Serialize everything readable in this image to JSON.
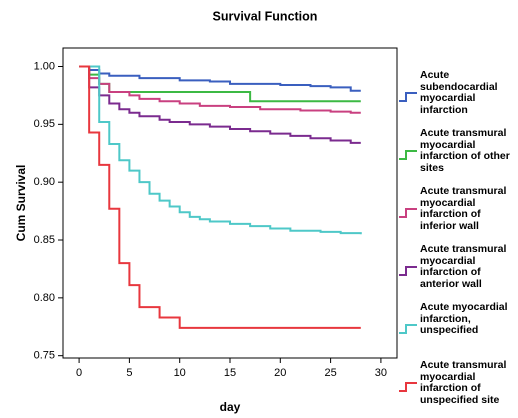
{
  "chart_data": {
    "type": "line",
    "step": true,
    "title": "Survival Function",
    "xlabel": "day",
    "ylabel": "Cum Survival",
    "x": [
      0,
      1,
      2,
      3,
      4,
      5,
      6,
      7,
      8,
      9,
      10,
      11,
      12,
      13,
      14,
      15,
      16,
      17,
      18,
      19,
      20,
      21,
      22,
      23,
      24,
      25,
      26,
      27,
      28
    ],
    "xlim": [
      -1.6,
      31.6
    ],
    "xticks": [
      0,
      5,
      10,
      15,
      20,
      25,
      30
    ],
    "ylim": [
      0.748,
      1.016
    ],
    "yticks": [
      {
        "value": 0.75,
        "label": "0.75"
      },
      {
        "value": 0.8,
        "label": "0.80"
      },
      0.85,
      {
        "value": 0.9,
        "label": "0.90"
      },
      0.95,
      {
        "value": 1,
        "label": "1.00"
      }
    ],
    "series": [
      {
        "name": "Acute subendocardial myocardial infarction",
        "color": "#3a5fbf",
        "values": [
          1,
          0.997,
          0.994,
          0.992,
          0.992,
          0.992,
          0.99,
          0.99,
          0.99,
          0.99,
          0.988,
          0.988,
          0.988,
          0.987,
          0.987,
          0.985,
          0.985,
          0.985,
          0.985,
          0.985,
          0.984,
          0.984,
          0.984,
          0.983,
          0.983,
          0.982,
          0.982,
          0.979,
          0.979
        ]
      },
      {
        "name": "Acute transmural myocardial infarction of other sites",
        "color": "#3cb944",
        "values": [
          1,
          0.993,
          0.985,
          0.978,
          0.978,
          0.978,
          0.978,
          0.978,
          0.978,
          0.978,
          0.978,
          0.978,
          0.978,
          0.978,
          0.978,
          0.978,
          0.978,
          0.97,
          0.97,
          0.97,
          0.97,
          0.97,
          0.97,
          0.97,
          0.97,
          0.97,
          0.97,
          0.97,
          0.97
        ]
      },
      {
        "name": "Acute transmural myocardial infarction of inferior wall",
        "color": "#c94080",
        "values": [
          1,
          0.99,
          0.985,
          0.978,
          0.978,
          0.975,
          0.972,
          0.972,
          0.97,
          0.97,
          0.968,
          0.968,
          0.966,
          0.966,
          0.966,
          0.965,
          0.965,
          0.965,
          0.963,
          0.963,
          0.963,
          0.963,
          0.962,
          0.962,
          0.962,
          0.961,
          0.961,
          0.96,
          0.96
        ]
      },
      {
        "name": "Acute transmural myocardial infarction of anterior wall",
        "color": "#7b2b8f",
        "values": [
          1,
          0.982,
          0.975,
          0.968,
          0.963,
          0.96,
          0.957,
          0.957,
          0.954,
          0.952,
          0.952,
          0.95,
          0.95,
          0.948,
          0.948,
          0.946,
          0.946,
          0.944,
          0.944,
          0.942,
          0.942,
          0.94,
          0.94,
          0.938,
          0.938,
          0.936,
          0.936,
          0.934,
          0.934
        ]
      },
      {
        "name": "Acute myocardial infarction, unspecified",
        "color": "#4ec8c8",
        "values": [
          1,
          1,
          0.952,
          0.933,
          0.919,
          0.91,
          0.9,
          0.89,
          0.884,
          0.879,
          0.874,
          0.87,
          0.868,
          0.866,
          0.866,
          0.864,
          0.864,
          0.862,
          0.862,
          0.86,
          0.86,
          0.858,
          0.858,
          0.858,
          0.857,
          0.857,
          0.856,
          0.856,
          0.855
        ]
      },
      {
        "name": "Acute transmural myocardial infarction of unspecified site",
        "color": "#e8373e",
        "values": [
          1,
          0.943,
          0.915,
          0.877,
          0.83,
          0.811,
          0.792,
          0.792,
          0.783,
          0.783,
          0.774,
          0.774,
          0.774,
          0.774,
          0.774,
          0.774,
          0.774,
          0.774,
          0.774,
          0.774,
          0.774,
          0.774,
          0.774,
          0.774,
          0.774,
          0.774,
          0.774,
          0.774,
          0.774
        ]
      }
    ]
  }
}
